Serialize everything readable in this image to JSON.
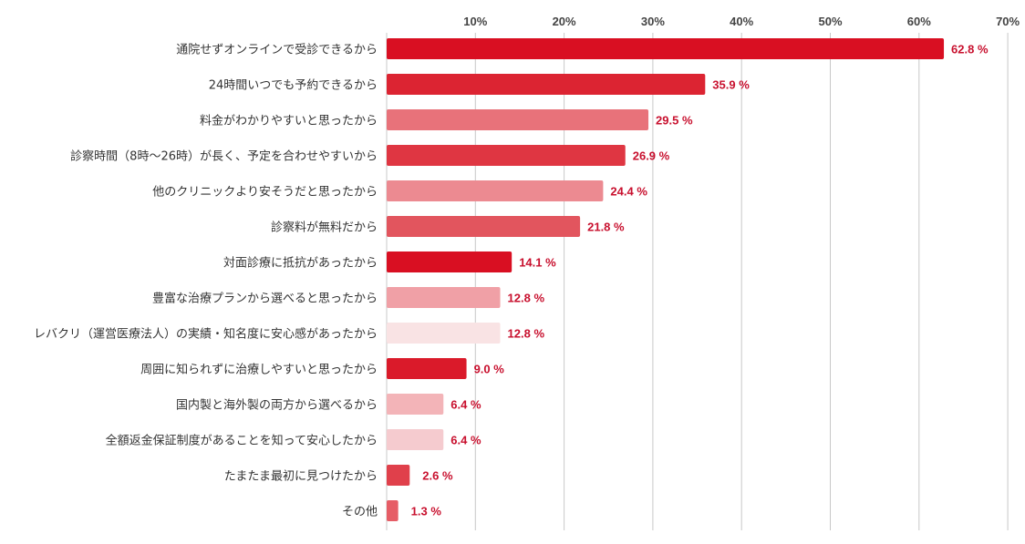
{
  "chart_data": {
    "type": "bar",
    "orientation": "horizontal",
    "categories": [
      "通院せずオンラインで受診できるから",
      "24時間いつでも予約できるから",
      "料金がわかりやすいと思ったから",
      "診察時間（8時～26時）が長く、予定を合わせやすいから",
      "他のクリニックより安そうだと思ったから",
      "診察料が無料だから",
      "対面診療に抵抗があったから",
      "豊富な治療プランから選べると思ったから",
      "レバクリ（運営医療法人）の実績・知名度に安心感があったから",
      "周囲に知られずに治療しやすいと思ったから",
      "国内製と海外製の両方から選べるから",
      "全額返金保証制度があることを知って安心したから",
      "たまたま最初に見つけたから",
      "その他"
    ],
    "values": [
      62.8,
      35.9,
      29.5,
      26.9,
      24.4,
      21.8,
      14.1,
      12.8,
      12.8,
      9.0,
      6.4,
      6.4,
      2.6,
      1.3
    ],
    "value_labels": [
      "62.8 %",
      "35.9 %",
      "29.5 %",
      "26.9 %",
      "24.4 %",
      "21.8 %",
      "14.1 %",
      "12.8 %",
      "12.8 %",
      "9.0 %",
      "6.4 %",
      "6.4 %",
      "2.6 %",
      "1.3 %"
    ],
    "bar_colors": [
      "#d90f22",
      "#dc2432",
      "#e8727a",
      "#df3642",
      "#ec8a91",
      "#e2555e",
      "#d90f22",
      "#f0a0a6",
      "#f9e3e4",
      "#da1a2a",
      "#f3b4b8",
      "#f5cbcf",
      "#e0404b",
      "#e65d66"
    ],
    "x_ticks": [
      "10%",
      "20%",
      "30%",
      "40%",
      "50%",
      "60%",
      "70%"
    ],
    "x_tick_values": [
      10,
      20,
      30,
      40,
      50,
      60,
      70
    ],
    "xlim": [
      0,
      70
    ],
    "grid": true,
    "label_color": "#c8102e"
  }
}
